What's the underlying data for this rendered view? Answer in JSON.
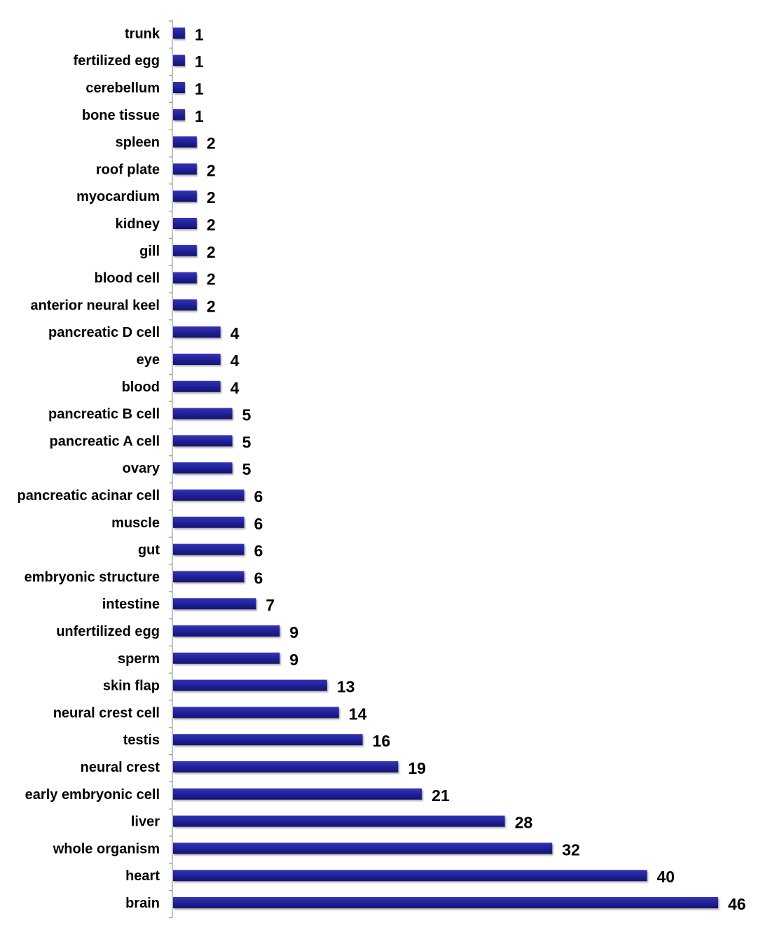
{
  "chart_data": {
    "type": "bar",
    "orientation": "horizontal",
    "categories": [
      "trunk",
      "fertilized egg",
      "cerebellum",
      "bone tissue",
      "spleen",
      "roof plate",
      "myocardium",
      "kidney",
      "gill",
      "blood cell",
      "anterior neural keel",
      "pancreatic D cell",
      "eye",
      "blood",
      "pancreatic B cell",
      "pancreatic A cell",
      "ovary",
      "pancreatic acinar cell",
      "muscle",
      "gut",
      "embryonic structure",
      "intestine",
      "unfertilized egg",
      "sperm",
      "skin flap",
      "neural crest cell",
      "testis",
      "neural crest",
      "early embryonic cell",
      "liver",
      "whole organism",
      "heart",
      "brain"
    ],
    "values": [
      1,
      1,
      1,
      1,
      2,
      2,
      2,
      2,
      2,
      2,
      2,
      4,
      4,
      4,
      5,
      5,
      5,
      6,
      6,
      6,
      6,
      7,
      9,
      9,
      13,
      14,
      16,
      19,
      21,
      28,
      32,
      40,
      46
    ],
    "data_labels": [
      "1",
      "1",
      "1",
      "1",
      "2",
      "2",
      "2",
      "2",
      "2",
      "2",
      "2",
      "4",
      "4",
      "4",
      "5",
      "5",
      "5",
      "6",
      "6",
      "6",
      "6",
      "7",
      "9",
      "9",
      "13",
      "14",
      "16",
      "19",
      "21",
      "28",
      "32",
      "40",
      "46"
    ],
    "title": "",
    "xlabel": "",
    "ylabel": "",
    "xlim": [
      0,
      46
    ],
    "grid": false,
    "legend": "none",
    "colors": {
      "bar": "#1c1c8c",
      "bar_light": "#3232b4",
      "axis": "#999999",
      "text": "#000000"
    }
  }
}
